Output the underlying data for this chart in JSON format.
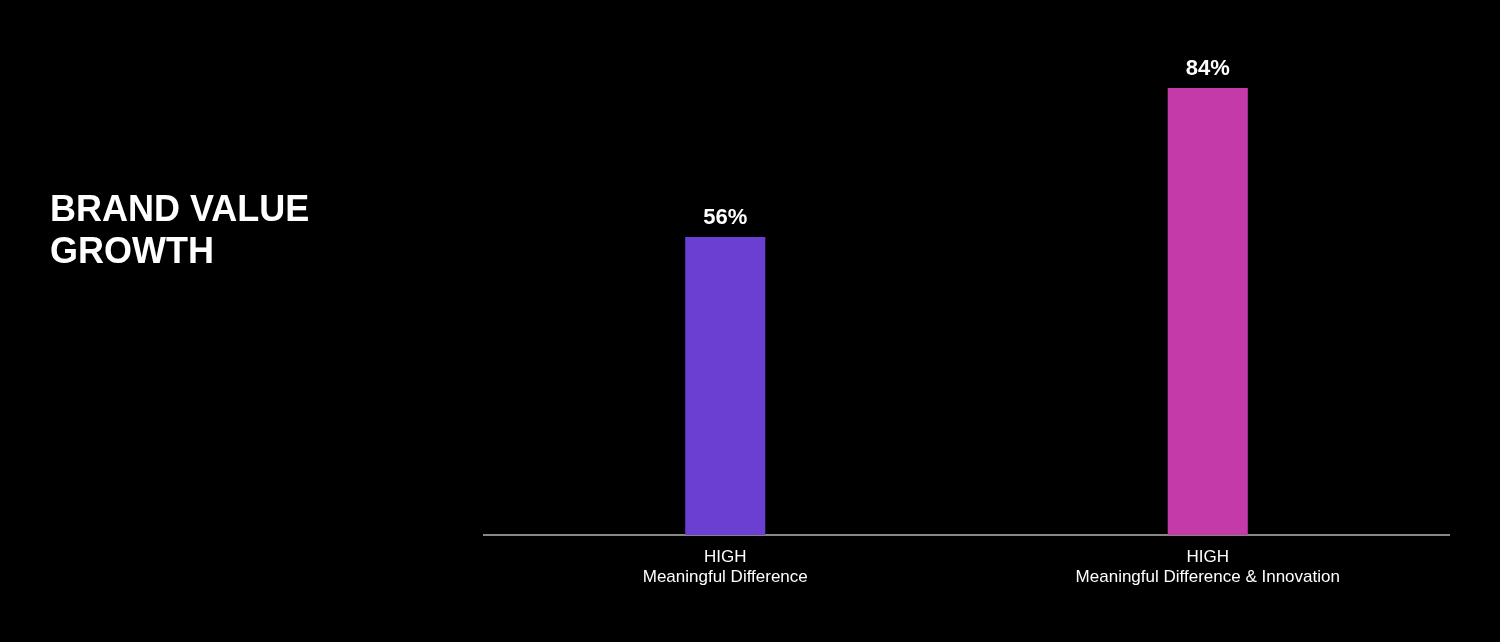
{
  "chart_data": {
    "type": "bar",
    "title": "BRAND VALUE GROWTH",
    "tick_labels": "x",
    "categories": [
      "HIGH\nMeaningful Difference",
      "HIGH\nMeaningful Difference & Innovation"
    ],
    "values": [
      56,
      84
    ],
    "colors": [
      "#6a3fd2",
      "#c43aa8"
    ],
    "value_labels": [
      "56%",
      "84%"
    ],
    "legend": false
  }
}
